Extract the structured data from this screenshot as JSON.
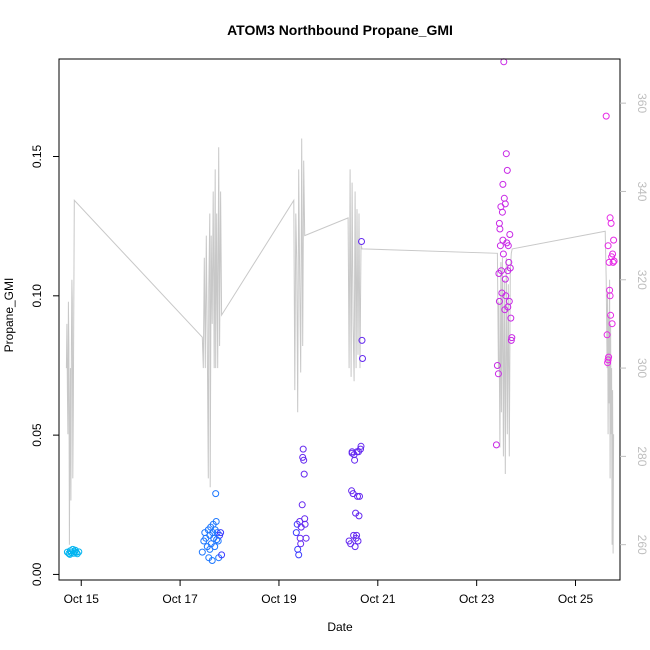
{
  "chart_data": {
    "type": "scatter",
    "title": "ATOM3 Northbound Propane_GMI",
    "xlabel": "Date",
    "ylabel": "Propane_GMI",
    "y2label": "",
    "xlim": [
      14.55,
      25.9
    ],
    "ylim": [
      -0.002,
      0.185
    ],
    "y2lim": [
      252,
      370
    ],
    "x_ticks": [
      {
        "value": 15,
        "label": "Oct 15"
      },
      {
        "value": 17,
        "label": "Oct 17"
      },
      {
        "value": 19,
        "label": "Oct 19"
      },
      {
        "value": 21,
        "label": "Oct 21"
      },
      {
        "value": 23,
        "label": "Oct 23"
      },
      {
        "value": 25,
        "label": "Oct 25"
      }
    ],
    "y_ticks": [
      {
        "value": 0.0,
        "label": "0.00"
      },
      {
        "value": 0.05,
        "label": "0.05"
      },
      {
        "value": 0.1,
        "label": "0.10"
      },
      {
        "value": 0.15,
        "label": "0.15"
      }
    ],
    "y2_ticks": [
      {
        "value": 260,
        "label": "260"
      },
      {
        "value": 280,
        "label": "280"
      },
      {
        "value": 300,
        "label": "300"
      },
      {
        "value": 320,
        "label": "320"
      },
      {
        "value": 340,
        "label": "340"
      },
      {
        "value": 360,
        "label": "360"
      }
    ],
    "grid": false,
    "legend": "none",
    "colors": {
      "line": "#c8c8c8",
      "right_axis": "#bebebe",
      "point_ramp": [
        "#00b4f0",
        "#1e78ff",
        "#3c3cff",
        "#6428f0",
        "#9628e6",
        "#c828e6",
        "#e628e6"
      ]
    },
    "series": [
      {
        "type": "points",
        "axis": "left",
        "points": [
          [
            14.72,
            0.008
          ],
          [
            14.75,
            0.0075
          ],
          [
            14.78,
            0.0085
          ],
          [
            14.8,
            0.0078
          ],
          [
            14.83,
            0.009
          ],
          [
            14.85,
            0.0076
          ],
          [
            14.87,
            0.0082
          ],
          [
            14.9,
            0.0079
          ],
          [
            14.92,
            0.0074
          ],
          [
            14.95,
            0.0081
          ],
          [
            14.77,
            0.0072
          ],
          [
            14.88,
            0.0087
          ],
          [
            17.45,
            0.008
          ],
          [
            17.48,
            0.012
          ],
          [
            17.5,
            0.015
          ],
          [
            17.52,
            0.013
          ],
          [
            17.55,
            0.01
          ],
          [
            17.57,
            0.016
          ],
          [
            17.58,
            0.006
          ],
          [
            17.6,
            0.014
          ],
          [
            17.62,
            0.017
          ],
          [
            17.63,
            0.011
          ],
          [
            17.65,
            0.005
          ],
          [
            17.66,
            0.015
          ],
          [
            17.68,
            0.013
          ],
          [
            17.7,
            0.01
          ],
          [
            17.71,
            0.016
          ],
          [
            17.72,
            0.029
          ],
          [
            17.73,
            0.019
          ],
          [
            17.75,
            0.015
          ],
          [
            17.77,
            0.012
          ],
          [
            17.78,
            0.006
          ],
          [
            17.8,
            0.014
          ],
          [
            17.82,
            0.015
          ],
          [
            17.84,
            0.007
          ],
          [
            17.6,
            0.009
          ],
          [
            17.67,
            0.018
          ],
          [
            17.74,
            0.0125
          ],
          [
            19.35,
            0.015
          ],
          [
            19.37,
            0.018
          ],
          [
            19.38,
            0.009
          ],
          [
            19.4,
            0.007
          ],
          [
            19.42,
            0.019
          ],
          [
            19.43,
            0.013
          ],
          [
            19.45,
            0.017
          ],
          [
            19.47,
            0.025
          ],
          [
            19.48,
            0.042
          ],
          [
            19.49,
            0.045
          ],
          [
            19.5,
            0.041
          ],
          [
            19.51,
            0.036
          ],
          [
            19.52,
            0.02
          ],
          [
            19.53,
            0.018
          ],
          [
            19.55,
            0.013
          ],
          [
            19.44,
            0.011
          ],
          [
            20.42,
            0.012
          ],
          [
            20.45,
            0.011
          ],
          [
            20.47,
            0.03
          ],
          [
            20.48,
            0.044
          ],
          [
            20.5,
            0.029
          ],
          [
            20.51,
            0.014
          ],
          [
            20.52,
            0.043
          ],
          [
            20.53,
            0.041
          ],
          [
            20.54,
            0.01
          ],
          [
            20.55,
            0.022
          ],
          [
            20.56,
            0.013
          ],
          [
            20.58,
            0.044
          ],
          [
            20.59,
            0.028
          ],
          [
            20.6,
            0.012
          ],
          [
            20.61,
            0.044
          ],
          [
            20.62,
            0.021
          ],
          [
            20.63,
            0.028
          ],
          [
            20.65,
            0.045
          ],
          [
            20.66,
            0.046
          ],
          [
            20.67,
            0.1195
          ],
          [
            20.68,
            0.084
          ],
          [
            20.69,
            0.0775
          ],
          [
            20.48,
            0.0435
          ],
          [
            20.57,
            0.014
          ],
          [
            23.4,
            0.0465
          ],
          [
            23.42,
            0.075
          ],
          [
            23.44,
            0.072
          ],
          [
            23.45,
            0.108
          ],
          [
            23.46,
            0.098
          ],
          [
            23.47,
            0.124
          ],
          [
            23.48,
            0.118
          ],
          [
            23.49,
            0.132
          ],
          [
            23.5,
            0.109
          ],
          [
            23.51,
            0.101
          ],
          [
            23.52,
            0.13
          ],
          [
            23.53,
            0.14
          ],
          [
            23.54,
            0.115
          ],
          [
            23.55,
            0.184
          ],
          [
            23.56,
            0.135
          ],
          [
            23.57,
            0.095
          ],
          [
            23.58,
            0.133
          ],
          [
            23.59,
            0.1
          ],
          [
            23.6,
            0.151
          ],
          [
            23.61,
            0.119
          ],
          [
            23.62,
            0.145
          ],
          [
            23.63,
            0.109
          ],
          [
            23.64,
            0.118
          ],
          [
            23.65,
            0.112
          ],
          [
            23.66,
            0.098
          ],
          [
            23.67,
            0.122
          ],
          [
            23.68,
            0.11
          ],
          [
            23.69,
            0.092
          ],
          [
            23.7,
            0.084
          ],
          [
            23.71,
            0.085
          ],
          [
            23.53,
            0.12
          ],
          [
            23.58,
            0.106
          ],
          [
            23.46,
            0.126
          ],
          [
            23.63,
            0.096
          ],
          [
            25.62,
            0.1645
          ],
          [
            25.64,
            0.086
          ],
          [
            25.65,
            0.076
          ],
          [
            25.66,
            0.077
          ],
          [
            25.67,
            0.078
          ],
          [
            25.68,
            0.112
          ],
          [
            25.69,
            0.102
          ],
          [
            25.7,
            0.128
          ],
          [
            25.71,
            0.093
          ],
          [
            25.72,
            0.126
          ],
          [
            25.73,
            0.114
          ],
          [
            25.74,
            0.09
          ],
          [
            25.75,
            0.115
          ],
          [
            25.76,
            0.112
          ],
          [
            25.77,
            0.12
          ],
          [
            25.78,
            0.1125
          ],
          [
            25.7,
            0.1
          ],
          [
            25.66,
            0.118
          ]
        ]
      },
      {
        "type": "line",
        "axis": "right",
        "points": [
          [
            14.7,
            300
          ],
          [
            14.71,
            310
          ],
          [
            14.72,
            295
          ],
          [
            14.73,
            285
          ],
          [
            14.74,
            315
          ],
          [
            14.75,
            305
          ],
          [
            14.76,
            260
          ],
          [
            14.77,
            285
          ],
          [
            14.78,
            300
          ],
          [
            14.79,
            270
          ],
          [
            14.8,
            305
          ],
          [
            14.81,
            320
          ],
          [
            14.82,
            315
          ],
          [
            14.83,
            275
          ],
          [
            14.84,
            290
          ],
          [
            14.86,
            338
          ],
          [
            17.45,
            307
          ],
          [
            17.47,
            300
          ],
          [
            17.49,
            325
          ],
          [
            17.51,
            300
          ],
          [
            17.53,
            330
          ],
          [
            17.55,
            305
          ],
          [
            17.57,
            275
          ],
          [
            17.58,
            318
          ],
          [
            17.6,
            335
          ],
          [
            17.61,
            273
          ],
          [
            17.63,
            330
          ],
          [
            17.65,
            310
          ],
          [
            17.67,
            340
          ],
          [
            17.69,
            300
          ],
          [
            17.71,
            345
          ],
          [
            17.72,
            300
          ],
          [
            17.74,
            335
          ],
          [
            17.76,
            300
          ],
          [
            17.78,
            350
          ],
          [
            17.8,
            305
          ],
          [
            17.82,
            340
          ],
          [
            17.84,
            312
          ],
          [
            19.3,
            338
          ],
          [
            19.32,
            295
          ],
          [
            19.34,
            335
          ],
          [
            19.36,
            325
          ],
          [
            19.38,
            290
          ],
          [
            19.4,
            345
          ],
          [
            19.42,
            320
          ],
          [
            19.44,
            299
          ],
          [
            19.46,
            352
          ],
          [
            19.48,
            305
          ],
          [
            19.5,
            347
          ],
          [
            19.52,
            330
          ],
          [
            20.4,
            334
          ],
          [
            20.42,
            300
          ],
          [
            20.44,
            345
          ],
          [
            20.46,
            298
          ],
          [
            20.48,
            342
          ],
          [
            20.5,
            310
          ],
          [
            20.52,
            297
          ],
          [
            20.54,
            340
          ],
          [
            20.56,
            300
          ],
          [
            20.58,
            336
          ],
          [
            20.6,
            303
          ],
          [
            20.62,
            335
          ],
          [
            20.64,
            300
          ],
          [
            20.66,
            328
          ],
          [
            20.68,
            327
          ],
          [
            23.42,
            326
          ],
          [
            23.44,
            300
          ],
          [
            23.45,
            315
          ],
          [
            23.47,
            282
          ],
          [
            23.49,
            324
          ],
          [
            23.5,
            290
          ],
          [
            23.52,
            325
          ],
          [
            23.54,
            280
          ],
          [
            23.56,
            320
          ],
          [
            23.58,
            276
          ],
          [
            23.6,
            325
          ],
          [
            23.62,
            285
          ],
          [
            23.64,
            319
          ],
          [
            23.66,
            280
          ],
          [
            23.68,
            322
          ],
          [
            23.7,
            326
          ],
          [
            23.72,
            327
          ],
          [
            25.6,
            331
          ],
          [
            25.62,
            320
          ],
          [
            25.64,
            300
          ],
          [
            25.65,
            317
          ],
          [
            25.66,
            285
          ],
          [
            25.67,
            312
          ],
          [
            25.68,
            292
          ],
          [
            25.69,
            320
          ],
          [
            25.7,
            275
          ],
          [
            25.71,
            310
          ],
          [
            25.72,
            285
          ],
          [
            25.73,
            300
          ],
          [
            25.74,
            260
          ],
          [
            25.75,
            295
          ],
          [
            25.76,
            258
          ],
          [
            25.77,
            285
          ]
        ]
      }
    ]
  }
}
